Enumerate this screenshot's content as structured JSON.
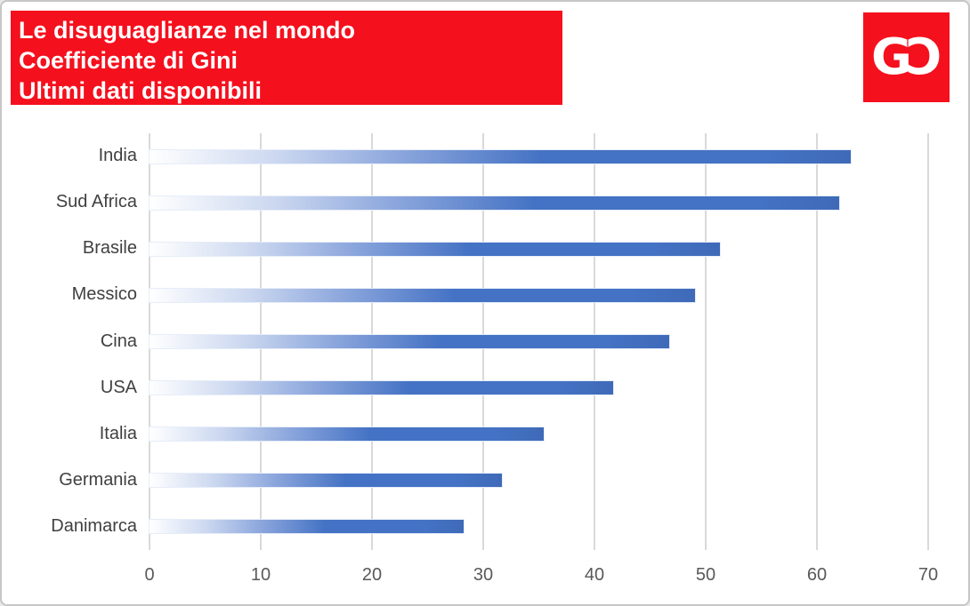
{
  "header": {
    "lines": [
      "Le disuguaglianze nel mondo",
      "Coefficiente di Gini",
      "Ultimi dati disponibili"
    ],
    "background": "#f5101d",
    "text_color": "#ffffff"
  },
  "logo": {
    "letters": [
      "G",
      "C"
    ],
    "second_letter_mirrored": true,
    "background": "#f5101d"
  },
  "chart_data": {
    "type": "bar",
    "orientation": "horizontal",
    "title": "Le disuguaglianze nel mondo — Coefficiente di Gini — Ultimi dati disponibili",
    "categories": [
      "India",
      "Sud Africa",
      "Brasile",
      "Messico",
      "Cina",
      "USA",
      "Italia",
      "Germania",
      "Danimarca"
    ],
    "values": [
      63.0,
      62.0,
      51.3,
      49.0,
      46.7,
      41.7,
      35.4,
      31.7,
      28.2
    ],
    "xlabel": "",
    "ylabel": "",
    "xlim": [
      0,
      70
    ],
    "x_ticks": [
      0,
      10,
      20,
      30,
      40,
      50,
      60,
      70
    ],
    "grid": true,
    "legend": false,
    "bar_color": "#4472c4",
    "bar_color_end": "#3f6ab8",
    "bar_gradient_start": "#ffffff",
    "gridline_color": "#d9d9d9",
    "category_label_color": "#404040",
    "tick_label_color": "#595959"
  }
}
